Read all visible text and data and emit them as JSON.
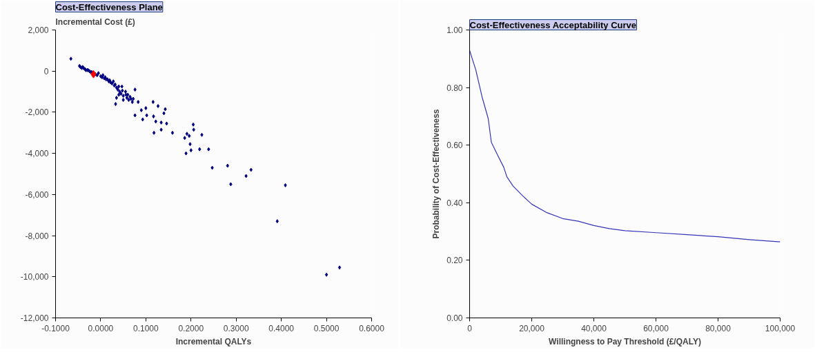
{
  "chart_data": [
    {
      "type": "scatter",
      "title": "Cost-Effectiveness Plane",
      "xlabel": "Incremental QALYs",
      "ylabel": "Incremental Cost (£)",
      "marker": "diamond",
      "grid": false,
      "xlim": [
        -0.1,
        0.6
      ],
      "ylim": [
        -12000,
        2000
      ],
      "xticks": [
        {
          "value": -0.1,
          "label": "-0.1000"
        },
        {
          "value": 0,
          "label": "0.0000"
        },
        {
          "value": 0.1,
          "label": "0.1000"
        },
        {
          "value": 0.2,
          "label": "0.2000"
        },
        {
          "value": 0.3,
          "label": "0.3000"
        },
        {
          "value": 0.4,
          "label": "0.4000"
        },
        {
          "value": 0.5,
          "label": "0.5000"
        },
        {
          "value": 0.6,
          "label": "0.6000"
        }
      ],
      "yticks": [
        {
          "value": 2000,
          "label": "2,000"
        },
        0,
        {
          "value": -2000,
          "label": "-2,000"
        },
        {
          "value": -4000,
          "label": "-4,000"
        },
        {
          "value": -6000,
          "label": "-6,000"
        },
        {
          "value": -8000,
          "label": "-8,000"
        },
        {
          "value": -10000,
          "label": "-10,000"
        },
        {
          "value": -12000,
          "label": "-12,000"
        }
      ],
      "series": [
        {
          "color": "#000080",
          "x": [
            -0.066,
            -0.047,
            -0.038,
            -0.03,
            -0.045,
            -0.042,
            -0.04,
            -0.035,
            -0.033,
            -0.028,
            -0.025,
            -0.022,
            -0.02,
            -0.012,
            -0.008,
            -0.005,
            0,
            0.003,
            0.005,
            0.008,
            0.01,
            0.012,
            0.015,
            0.018,
            0.02,
            0.022,
            0.025,
            0.028,
            0.03,
            0.032,
            0.035,
            0.038,
            0.04,
            0.042,
            0.045,
            0.048,
            0.05,
            0.055,
            0.058,
            0.06,
            0.062,
            0.065,
            0.07,
            0.072,
            0.04,
            0.035,
            0.05,
            0.047,
            0.033,
            0.056,
            0.067,
            0.076,
            0.083,
            0.076,
            0.09,
            0.093,
            0.1,
            0.102,
            0.116,
            0.117,
            0.118,
            0.127,
            0.122,
            0.134,
            0.134,
            0.14,
            0.143,
            0.146,
            0.159,
            0.186,
            0.191,
            0.196,
            0.198,
            0.189,
            0.2,
            0.205,
            0.206,
            0.224,
            0.219,
            0.239,
            0.247,
            0.281,
            0.288,
            0.322,
            0.333,
            0.409,
            0.391,
            0.5,
            0.529
          ],
          "values": [
            600,
            250,
            150,
            50,
            200,
            150,
            200,
            100,
            50,
            50,
            0,
            -50,
            -50,
            -150,
            -200,
            -100,
            -250,
            -300,
            -200,
            -350,
            -300,
            -400,
            -400,
            -500,
            -450,
            -550,
            -600,
            -500,
            -700,
            -650,
            -800,
            -900,
            -750,
            -1000,
            -1100,
            -950,
            -1200,
            -1000,
            -1300,
            -1150,
            -1400,
            -1250,
            -1500,
            -1350,
            -1150,
            -1300,
            -1400,
            -750,
            -1600,
            -1150,
            -1350,
            -900,
            -1500,
            -2150,
            -1900,
            -2350,
            -1800,
            -2150,
            -1500,
            -2200,
            -3000,
            -1700,
            -2450,
            -2500,
            -2850,
            -2050,
            -1850,
            -2550,
            -3000,
            -3250,
            -3050,
            -3150,
            -3550,
            -4000,
            -3850,
            -2600,
            -2850,
            -3100,
            -3800,
            -3800,
            -4700,
            -4600,
            -5500,
            -5100,
            -4800,
            -5550,
            -7300,
            -9900,
            -9550
          ]
        },
        {
          "color": "#ff0000",
          "x": [
            -0.016
          ],
          "values": [
            -150
          ]
        }
      ]
    },
    {
      "type": "line",
      "title": "Cost-Effectiveness Acceptability Curve",
      "xlabel": "Willingness to Pay Threshold (£/QALY)",
      "ylabel": "Probability of Cost-Effectiveness",
      "grid": false,
      "marker": "none",
      "xlim": [
        0,
        100000
      ],
      "ylim": [
        0,
        1
      ],
      "xticks": [
        0,
        {
          "value": 20000,
          "label": "20,000"
        },
        {
          "value": 40000,
          "label": "40,000"
        },
        {
          "value": 60000,
          "label": "60,000"
        },
        {
          "value": 80000,
          "label": "80,000"
        },
        {
          "value": 100000,
          "label": "100,000"
        }
      ],
      "yticks": [
        {
          "value": 0,
          "label": "0.00"
        },
        {
          "value": 0.2,
          "label": "0.20"
        },
        {
          "value": 0.4,
          "label": "0.40"
        },
        {
          "value": 0.6,
          "label": "0.60"
        },
        {
          "value": 0.8,
          "label": "0.80"
        },
        {
          "value": 1,
          "label": "1.00"
        }
      ],
      "series": [
        {
          "color": "#3333bb",
          "x": [
            0,
            2000,
            4000,
            6000,
            7000,
            9000,
            11000,
            12000,
            14000,
            17000,
            20000,
            25000,
            30000,
            35000,
            40000,
            45000,
            50000,
            60000,
            70000,
            80000,
            90000,
            100000
          ],
          "values": [
            0.929,
            0.861,
            0.768,
            0.692,
            0.61,
            0.566,
            0.523,
            0.49,
            0.458,
            0.425,
            0.395,
            0.365,
            0.345,
            0.336,
            0.321,
            0.31,
            0.303,
            0.296,
            0.289,
            0.282,
            0.272,
            0.264
          ]
        }
      ]
    }
  ]
}
